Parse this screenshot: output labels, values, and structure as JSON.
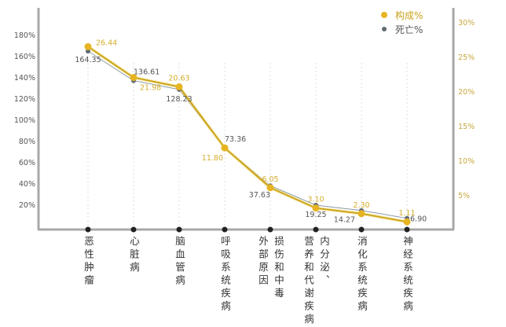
{
  "chart_data": {
    "type": "line",
    "categories": [
      {
        "label": "恶性肿瘤",
        "columns": [
          "恶性肿瘤"
        ]
      },
      {
        "label": "心脏病",
        "columns": [
          "心脏病"
        ]
      },
      {
        "label": "脑血管病",
        "columns": [
          "脑血管病"
        ]
      },
      {
        "label": "呼吸系统疾病",
        "columns": [
          "呼吸系统疾病"
        ]
      },
      {
        "label": "损伤和中毒外部原因",
        "columns": [
          "损伤和中毒",
          "外部原因"
        ]
      },
      {
        "label": "内分泌、营养和代谢疾病",
        "columns": [
          "内分泌、",
          "营养和代谢疾病"
        ]
      },
      {
        "label": "消化系统疾病",
        "columns": [
          "消化系统疾病"
        ]
      },
      {
        "label": "神经系统疾病",
        "columns": [
          "神经系统疾病"
        ]
      }
    ],
    "series": [
      {
        "name": "构成%",
        "axis": "right",
        "color": "#e6b422",
        "values": [
          26.44,
          21.98,
          20.63,
          11.8,
          6.05,
          3.1,
          2.3,
          1.11
        ],
        "labels": [
          "26.44",
          "21.98",
          "20.63",
          "11.80",
          "6.05",
          "3.10",
          "2.30",
          "1.11"
        ]
      },
      {
        "name": "死亡%",
        "axis": "left",
        "color": "#5f6b73",
        "values": [
          164.35,
          136.61,
          128.23,
          73.36,
          37.63,
          19.25,
          14.27,
          6.9
        ],
        "labels": [
          "164.35",
          "136.61",
          "128.23",
          "73.36",
          "37.63",
          "19.25",
          "14.27",
          "6.90"
        ]
      }
    ],
    "left_axis": {
      "ticks": [
        "20%",
        "40%",
        "60%",
        "80%",
        "100%",
        "120%",
        "140%",
        "160%",
        "180%"
      ],
      "tick_values": [
        20,
        40,
        60,
        80,
        100,
        120,
        140,
        160,
        180
      ],
      "color": "#555555"
    },
    "right_axis": {
      "ticks": [
        "5%",
        "10%",
        "15%",
        "20%",
        "25%",
        "30%"
      ],
      "tick_values": [
        5,
        10,
        15,
        20,
        25,
        30
      ],
      "color": "#c9a840"
    },
    "legend": {
      "placement": "top-right",
      "items": [
        "构成%",
        "死亡%"
      ]
    },
    "grid": false
  }
}
